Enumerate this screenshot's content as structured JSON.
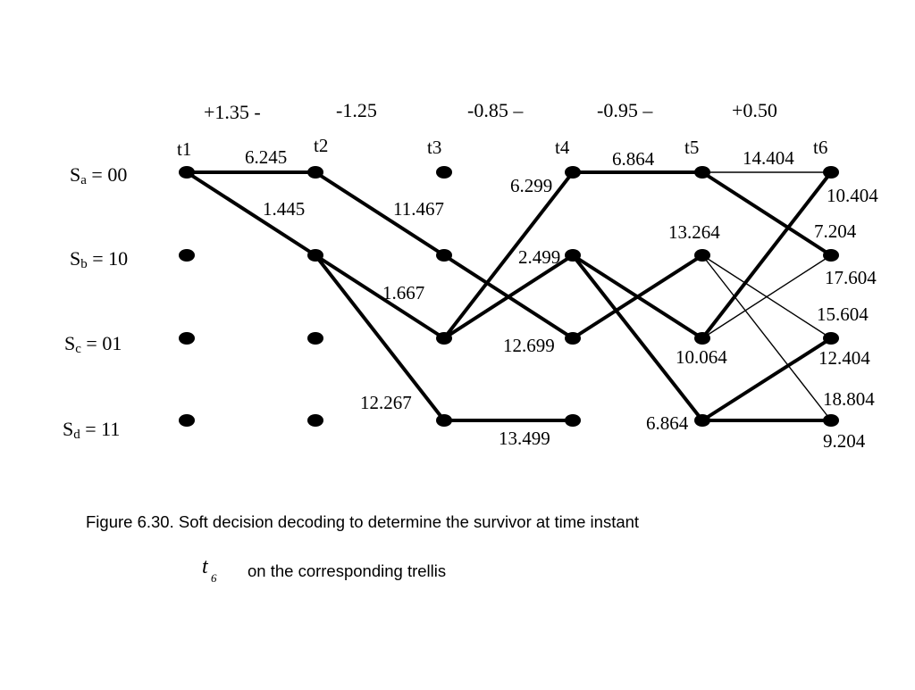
{
  "received": [
    "+1.35  -",
    "-1.25",
    "-0.85 –",
    "-0.95 –",
    "+0.50"
  ],
  "times": [
    "t1",
    "t2",
    "t3",
    "t4",
    "t5",
    "t6"
  ],
  "states": [
    {
      "sym": "S",
      "sub": "a",
      "val": " = 00"
    },
    {
      "sym": "S",
      "sub": "b",
      "val": " = 10"
    },
    {
      "sym": "S",
      "sub": "c",
      "val": " = 01"
    },
    {
      "sym": "S",
      "sub": "d",
      "val": " = 11"
    }
  ],
  "nodes": [
    [
      0,
      0
    ],
    [
      0,
      1
    ],
    [
      0,
      2
    ],
    [
      0,
      3
    ],
    [
      1,
      0
    ],
    [
      1,
      1
    ],
    [
      1,
      2
    ],
    [
      1,
      3
    ],
    [
      2,
      0
    ],
    [
      2,
      1
    ],
    [
      2,
      2
    ],
    [
      2,
      3
    ],
    [
      3,
      0
    ],
    [
      3,
      1
    ],
    [
      3,
      2
    ],
    [
      3,
      3
    ],
    [
      4,
      0
    ],
    [
      4,
      1
    ],
    [
      4,
      2
    ],
    [
      4,
      3
    ],
    [
      5,
      0
    ],
    [
      5,
      1
    ],
    [
      5,
      2
    ],
    [
      5,
      3
    ]
  ],
  "branches": [
    {
      "from": [
        0,
        0
      ],
      "to": [
        1,
        0
      ],
      "weight": "thick"
    },
    {
      "from": [
        0,
        0
      ],
      "to": [
        1,
        1
      ],
      "weight": "thick"
    },
    {
      "from": [
        1,
        0
      ],
      "to": [
        2,
        1
      ],
      "weight": "thick"
    },
    {
      "from": [
        1,
        1
      ],
      "to": [
        2,
        2
      ],
      "weight": "thick"
    },
    {
      "from": [
        1,
        1
      ],
      "to": [
        2,
        3
      ],
      "weight": "thick"
    },
    {
      "from": [
        2,
        2
      ],
      "to": [
        3,
        0
      ],
      "weight": "thick"
    },
    {
      "from": [
        2,
        2
      ],
      "to": [
        3,
        1
      ],
      "weight": "thick"
    },
    {
      "from": [
        2,
        1
      ],
      "to": [
        3,
        2
      ],
      "weight": "thick"
    },
    {
      "from": [
        2,
        3
      ],
      "to": [
        3,
        3
      ],
      "weight": "thick"
    },
    {
      "from": [
        3,
        0
      ],
      "to": [
        4,
        0
      ],
      "weight": "thick"
    },
    {
      "from": [
        3,
        2
      ],
      "to": [
        4,
        1
      ],
      "weight": "thick"
    },
    {
      "from": [
        3,
        1
      ],
      "to": [
        4,
        2
      ],
      "weight": "thick"
    },
    {
      "from": [
        3,
        1
      ],
      "to": [
        4,
        3
      ],
      "weight": "thick"
    },
    {
      "from": [
        4,
        0
      ],
      "to": [
        5,
        0
      ],
      "weight": "thin"
    },
    {
      "from": [
        4,
        0
      ],
      "to": [
        5,
        1
      ],
      "weight": "thick"
    },
    {
      "from": [
        4,
        2
      ],
      "to": [
        5,
        0
      ],
      "weight": "thick"
    },
    {
      "from": [
        4,
        2
      ],
      "to": [
        5,
        1
      ],
      "weight": "thin"
    },
    {
      "from": [
        4,
        1
      ],
      "to": [
        5,
        2
      ],
      "weight": "thin"
    },
    {
      "from": [
        4,
        1
      ],
      "to": [
        5,
        3
      ],
      "weight": "thin"
    },
    {
      "from": [
        4,
        3
      ],
      "to": [
        5,
        2
      ],
      "weight": "thick"
    },
    {
      "from": [
        4,
        3
      ],
      "to": [
        5,
        3
      ],
      "weight": "thick"
    }
  ],
  "metrics": [
    "6.245",
    "1.445",
    "11.467",
    "1.667",
    "12.267",
    "6.299",
    "2.499",
    "12.699",
    "13.499",
    "6.864",
    "13.264",
    "10.064",
    "6.864",
    "14.404",
    "10.404",
    "7.204",
    "17.604",
    "15.604",
    "12.404",
    "18.804",
    "9.204"
  ],
  "caption": {
    "line1": "Figure 6.30. Soft decision decoding to determine the survivor at time instant",
    "t_symbol": "t",
    "t_sub": "6",
    "line2": "on the corresponding trellis"
  }
}
